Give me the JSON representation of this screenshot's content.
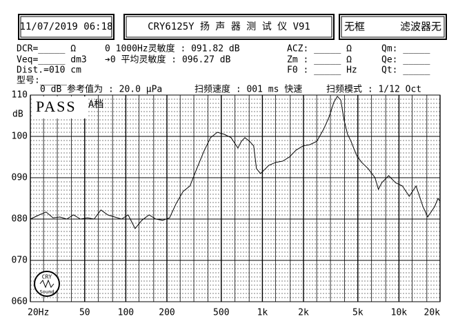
{
  "header": {
    "datetime": "11/07/2019 06:18",
    "model_title": "CRY6125Y 扬 声 器 测 试 仪  V91",
    "frame": "无框",
    "filter": "滤波器无"
  },
  "info": {
    "dcr": "DCR=_____ Ω",
    "sens_1k": "0 1000Hz灵敏度 : 091.82 dB",
    "acz": "ACZ: _____ Ω",
    "qm": "Qm: _____",
    "veq": "Veq=_____ dm3",
    "sens_avg": "➔0 平均灵敏度 : 096.27 dB",
    "zm": "Zm : _____ Ω",
    "qe": "Qe: _____",
    "dist": "Dist.=010 cm",
    "f0": "F0 : _____ Hz",
    "qt": "Qt: _____",
    "model": "型号:_____",
    "reference": "0 dB 参考值为 : 20.0 μPa",
    "sweep_speed": "扫频速度 : 001 ms 快速",
    "sweep_mode": "扫频模式 : 1/12 Oct"
  },
  "result": {
    "status": "PASS",
    "grade": "A档"
  },
  "logo": {
    "top": "CRY",
    "bottom": "Sound"
  },
  "chart_data": {
    "type": "line",
    "ylabel": "dB",
    "xscale": "log",
    "grid": true,
    "color": "#000000",
    "y_minor_step": 1,
    "xlim": [
      20,
      20000
    ],
    "ylim": [
      60,
      110
    ],
    "xticks": [
      {
        "value": 20,
        "label": "20Hz"
      },
      50,
      100,
      200,
      500,
      {
        "value": 1000,
        "label": "1k"
      },
      {
        "value": 2000,
        "label": "2k"
      },
      {
        "value": 5000,
        "label": "5k"
      },
      {
        "value": 10000,
        "label": "10k"
      },
      {
        "value": 20000,
        "label": "20k"
      }
    ],
    "yticks": [
      {
        "value": 60,
        "label": "060"
      },
      {
        "value": 70,
        "label": "070"
      },
      {
        "value": 80,
        "label": "080"
      },
      {
        "value": 90,
        "label": "090"
      },
      100,
      110
    ],
    "x_gridlines": [
      20,
      25,
      31.5,
      40,
      50,
      63,
      80,
      100,
      125,
      160,
      200,
      250,
      315,
      400,
      500,
      630,
      800,
      1000,
      1250,
      1600,
      2000,
      2500,
      3150,
      4000,
      5000,
      6300,
      8000,
      10000,
      12500,
      16000,
      20000
    ],
    "x": [
      20,
      23.2,
      26.1,
      29.3,
      32.9,
      36.9,
      41.4,
      46.5,
      52.2,
      58.6,
      65.7,
      73.8,
      82.8,
      93,
      104,
      117,
      131,
      148,
      166,
      186,
      209,
      234,
      263,
      295,
      331,
      372,
      417,
      468,
      526,
      590,
      662,
      702,
      744,
      806,
      864,
      905,
      970,
      1114,
      1250,
      1404,
      1576,
      1768,
      1985,
      2228,
      2500,
      2807,
      3080,
      3340,
      3538,
      3748,
      3970,
      4206,
      4456,
      4887,
      5300,
      5946,
      6676,
      7073,
      7494,
      8411,
      9441,
      10597,
      11894,
      13348,
      14984,
      16248,
      18239,
      19318,
      20000
    ],
    "values": [
      80,
      81,
      81.7,
      80.3,
      80.5,
      80,
      81,
      80,
      80.3,
      80,
      82.2,
      81,
      80.5,
      80,
      81,
      77.7,
      79.7,
      81,
      80,
      79.7,
      80.3,
      83.8,
      86.7,
      88,
      92.2,
      96.3,
      99.7,
      101,
      100.5,
      99.7,
      97.2,
      98.8,
      99.7,
      98.8,
      97.7,
      92.2,
      91,
      93,
      93.7,
      94,
      95,
      96.7,
      97.7,
      98,
      98.8,
      101.7,
      104.7,
      108.3,
      109.7,
      108.8,
      103.8,
      100.5,
      98.8,
      95.5,
      93.8,
      92.2,
      90,
      87.2,
      88.8,
      90.5,
      88.8,
      88,
      85.5,
      88,
      83,
      80.5,
      83,
      85,
      84.3
    ]
  }
}
